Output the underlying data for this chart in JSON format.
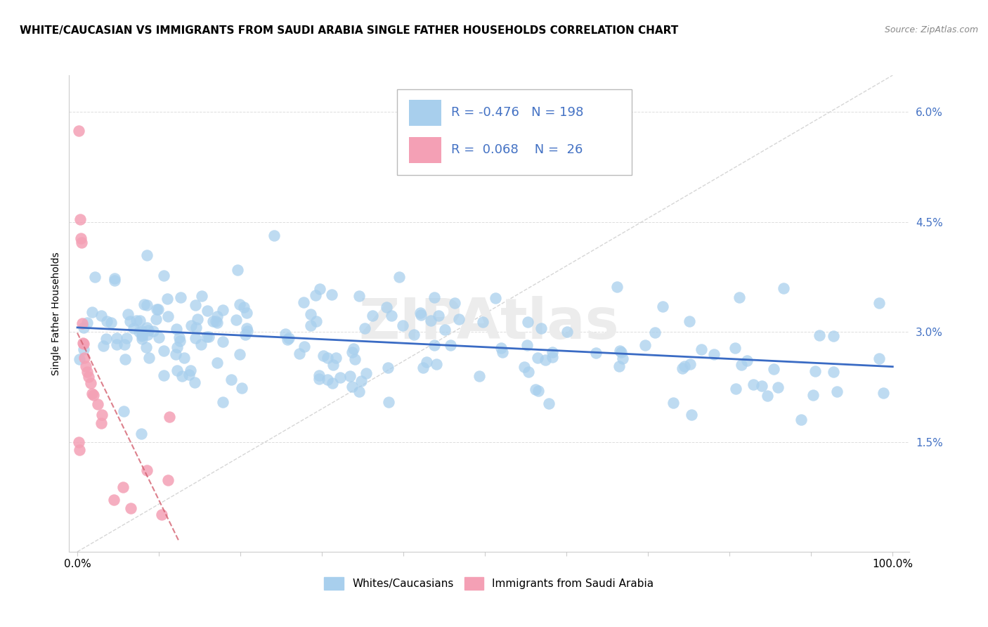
{
  "title": "WHITE/CAUCASIAN VS IMMIGRANTS FROM SAUDI ARABIA SINGLE FATHER HOUSEHOLDS CORRELATION CHART",
  "source": "Source: ZipAtlas.com",
  "ylabel": "Single Father Households",
  "legend_label1": "Whites/Caucasians",
  "legend_label2": "Immigrants from Saudi Arabia",
  "R1": "-0.476",
  "N1": "198",
  "R2": "0.068",
  "N2": "26",
  "blue_scatter_color": "#A8CFED",
  "pink_scatter_color": "#F4A0B5",
  "blue_line_color": "#3A6BC4",
  "pink_line_color": "#D46070",
  "diag_line_color": "#CCCCCC",
  "ytick_vals": [
    1.5,
    3.0,
    4.5,
    6.0
  ],
  "ytick_labels": [
    "1.5%",
    "3.0%",
    "4.5%",
    "6.0%"
  ],
  "yaxis_label_color": "#4472C4",
  "yaxis_tick_color": "#4472C4",
  "title_fontsize": 11,
  "source_fontsize": 9,
  "tick_fontsize": 11,
  "legend_fontsize": 11,
  "watermark_text": "ZIPAtlas",
  "background_color": "#FFFFFF",
  "grid_color": "#DDDDDD",
  "spine_color": "#CCCCCC"
}
